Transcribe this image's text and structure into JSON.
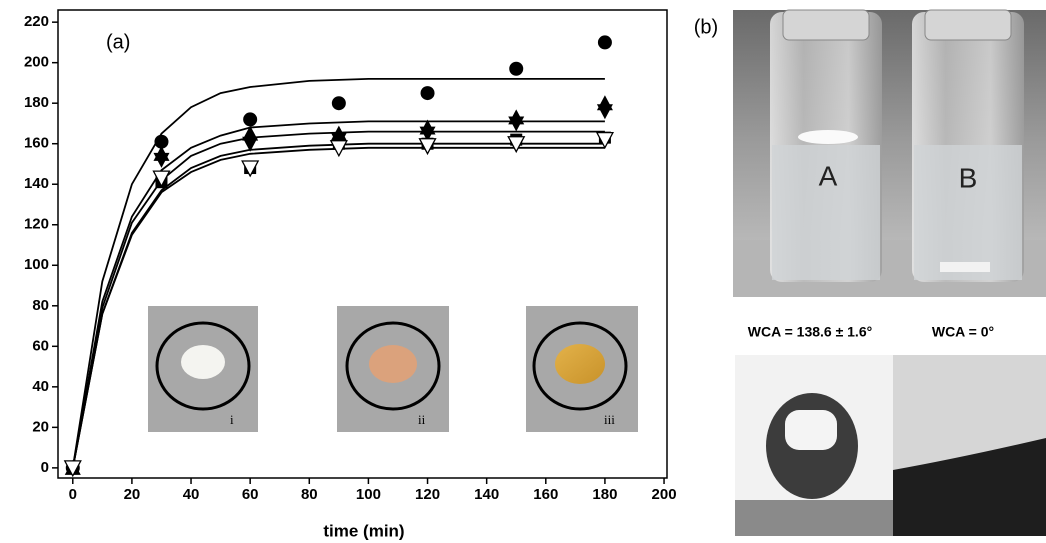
{
  "chart_data": {
    "type": "scatter",
    "panel_label": "(a)",
    "xlabel": "time (min)",
    "xlim": [
      -5,
      201
    ],
    "ylim": [
      -5,
      226
    ],
    "xticks": [
      0,
      20,
      40,
      60,
      80,
      100,
      120,
      140,
      160,
      180,
      200
    ],
    "yticks": [
      0,
      20,
      40,
      60,
      80,
      100,
      120,
      140,
      160,
      180,
      200,
      220
    ],
    "x": [
      0,
      30,
      60,
      90,
      120,
      150,
      180
    ],
    "series": [
      {
        "marker": "circle",
        "color": "#000000",
        "values": [
          0,
          161,
          172,
          180,
          185,
          197,
          210
        ]
      },
      {
        "marker": "triangle-up",
        "color": "#000000",
        "values": [
          0,
          155,
          165,
          165,
          168,
          173,
          180
        ]
      },
      {
        "marker": "triangle-down",
        "color": "#000000",
        "values": [
          0,
          152,
          160,
          162,
          165,
          170,
          176
        ]
      },
      {
        "marker": "square",
        "color": "#000000",
        "values": [
          0,
          141,
          148,
          160,
          160,
          162,
          163
        ]
      },
      {
        "marker": "triangle-down-open",
        "color": "#000000",
        "values": [
          0,
          143,
          148,
          158,
          159,
          160,
          162
        ]
      }
    ],
    "fit_x": [
      0,
      10,
      20,
      30,
      40,
      50,
      60,
      80,
      100,
      120,
      150,
      180
    ],
    "fits": [
      {
        "color": "#000000",
        "values": [
          0,
          92,
          140,
          165,
          178,
          185,
          188,
          191,
          192,
          192,
          192,
          192
        ]
      },
      {
        "color": "#000000",
        "values": [
          0,
          82,
          124,
          147,
          158,
          164,
          168,
          170,
          171,
          171,
          171,
          171
        ]
      },
      {
        "color": "#000000",
        "values": [
          0,
          79,
          121,
          142,
          154,
          160,
          163,
          165,
          166,
          166,
          166,
          166
        ]
      },
      {
        "color": "#000000",
        "values": [
          0,
          76,
          116,
          137,
          148,
          154,
          157,
          159,
          160,
          160,
          160,
          160
        ]
      },
      {
        "color": "#000000",
        "values": [
          0,
          76,
          115,
          136,
          146,
          152,
          155,
          157,
          158,
          158,
          158,
          158
        ]
      }
    ],
    "inset_labels": [
      "i",
      "ii",
      "iii"
    ],
    "panel_b": {
      "label": "(b)",
      "vial_labels": [
        "A",
        "B"
      ],
      "wca_labels": [
        "WCA = 138.6 ± 1.6°",
        "WCA = 0°"
      ]
    }
  }
}
